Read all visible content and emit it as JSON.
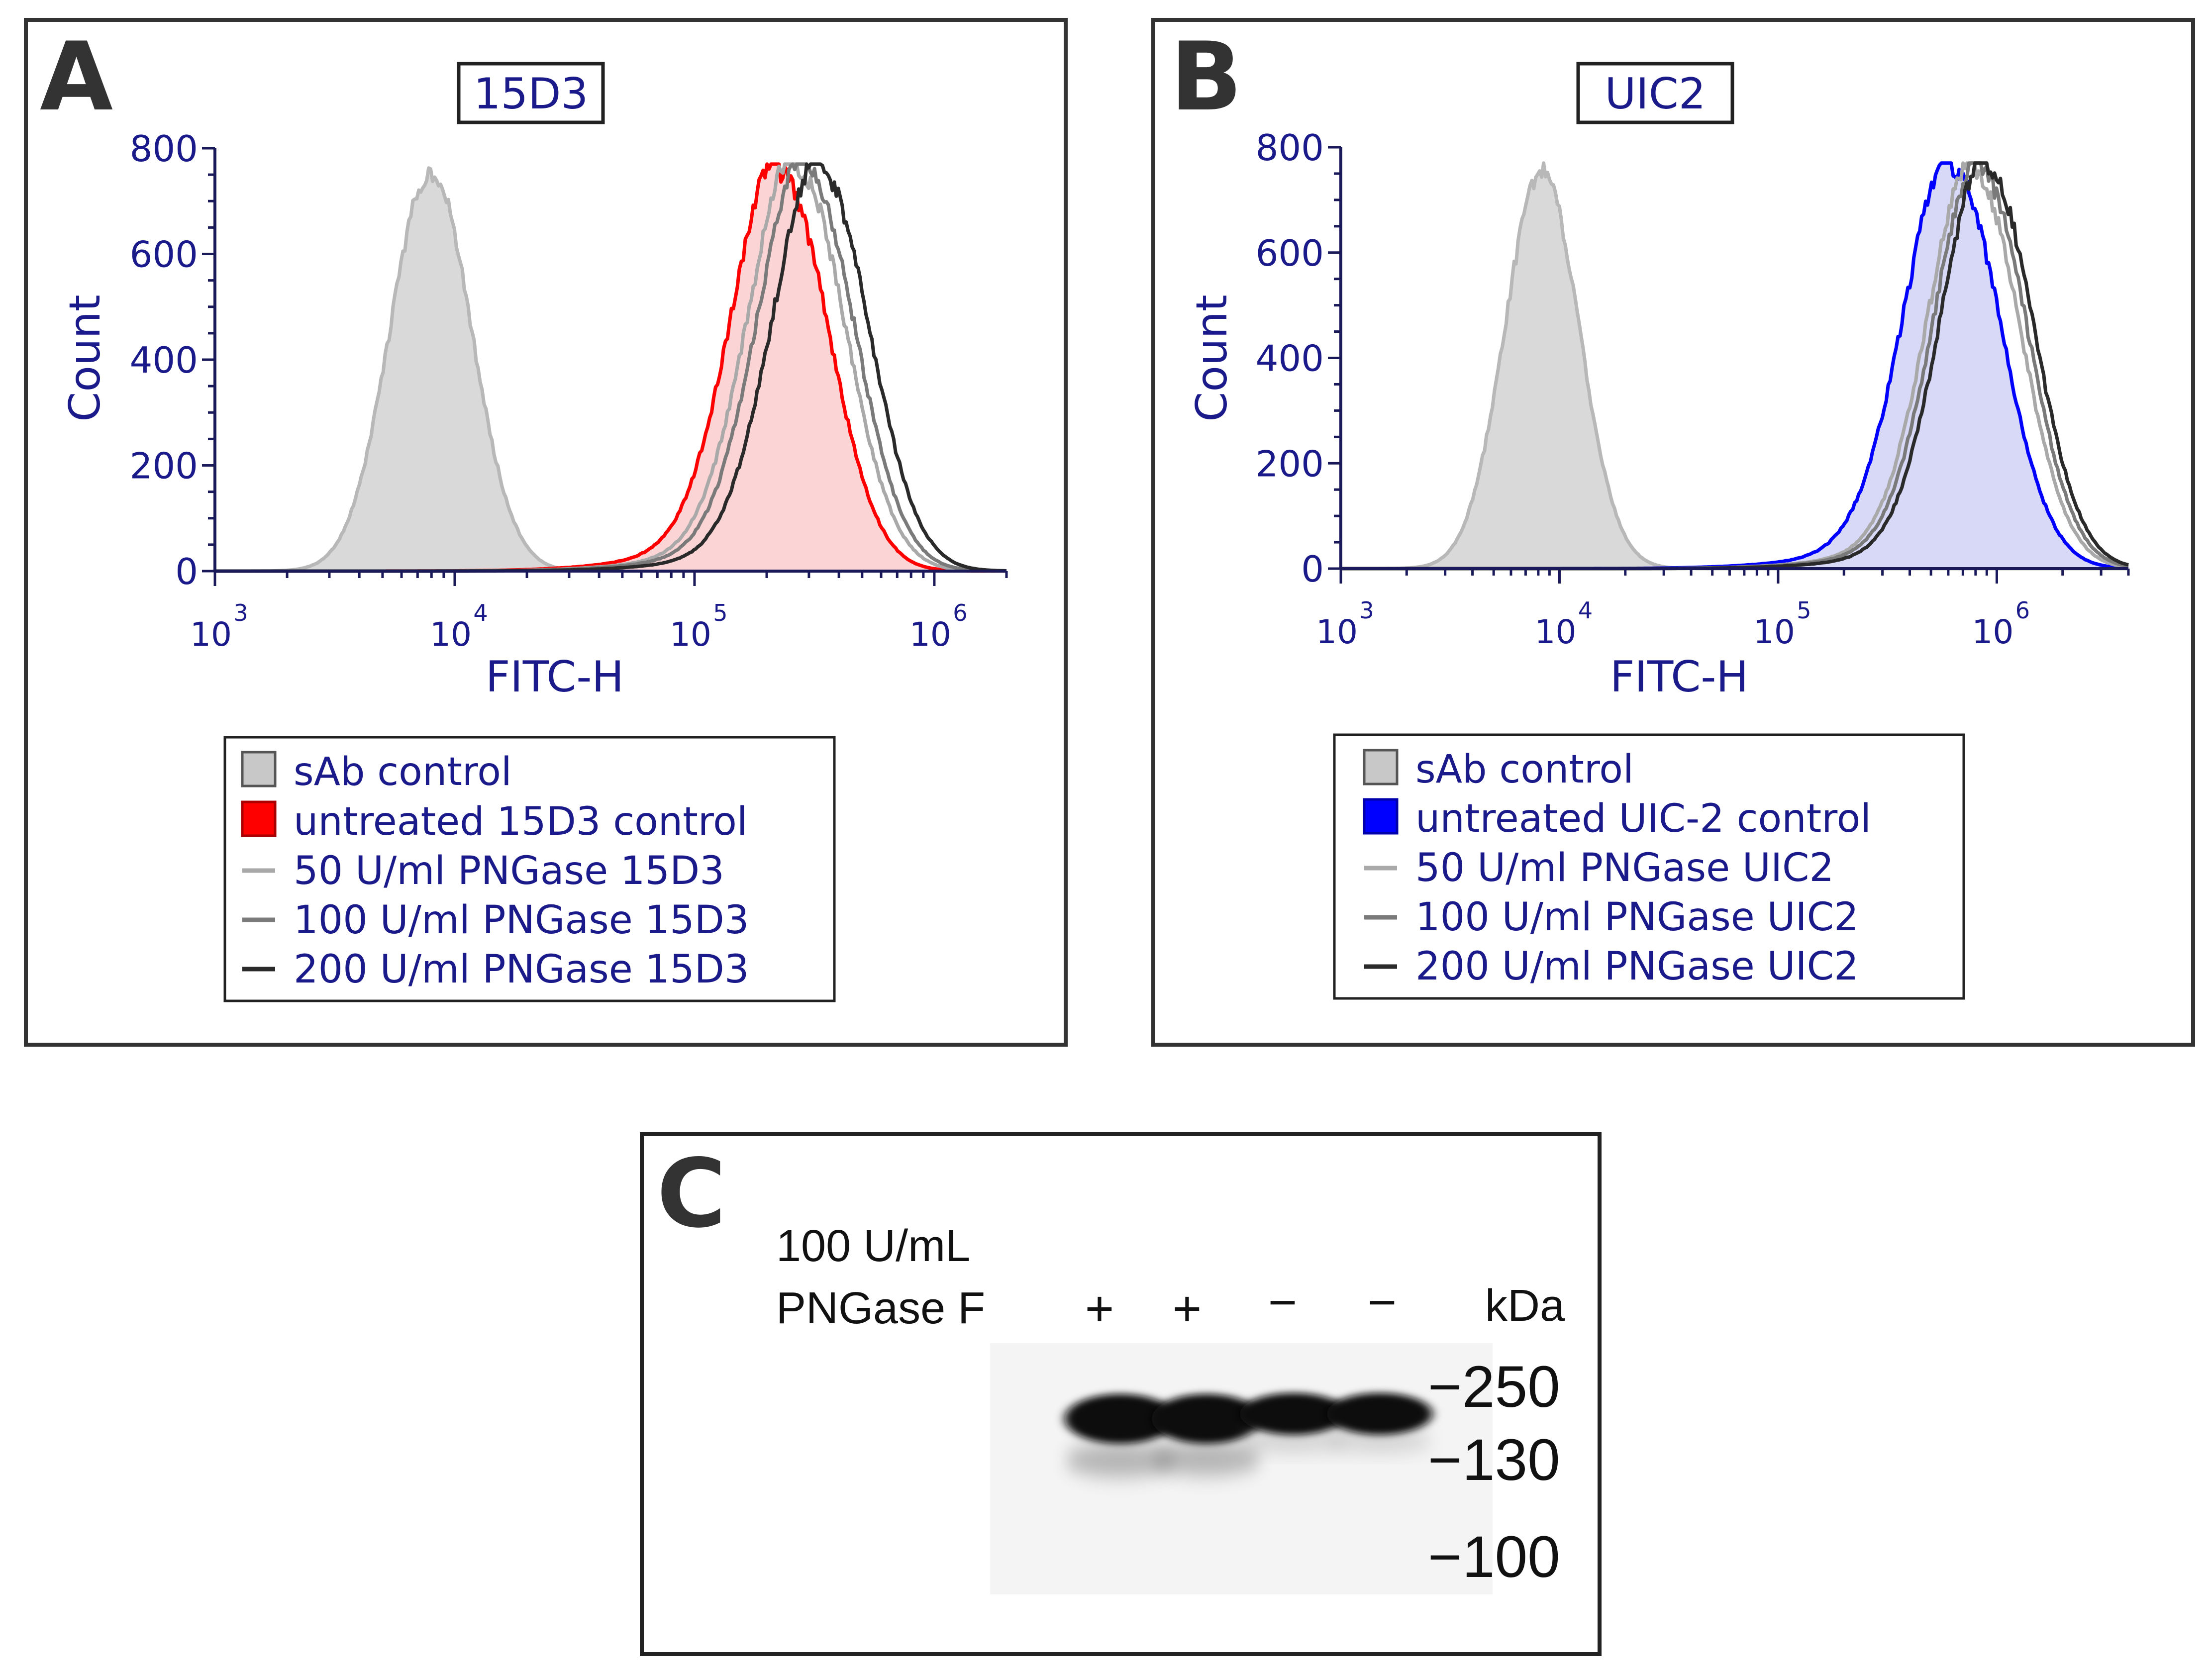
{
  "panels": [
    {
      "letter": "A",
      "antibody_label": "15D3",
      "chart_data": {
        "type": "histogram",
        "title": "15D3",
        "xlabel": "FITC-H",
        "ylabel": "Count",
        "xscale": "log",
        "xlim": [
          1000,
          2000000
        ],
        "ylim": [
          0,
          800
        ],
        "yticks": [
          0,
          200,
          400,
          600,
          800
        ],
        "xticks": [
          {
            "value": 1000,
            "base": "10",
            "exp": "3"
          },
          {
            "value": 10000,
            "base": "10",
            "exp": "4"
          },
          {
            "value": 100000,
            "base": "10",
            "exp": "5"
          },
          {
            "value": 1000000,
            "base": "10",
            "exp": "6"
          }
        ],
        "series": [
          {
            "name": "sAb control",
            "style": "filled",
            "color": "#b8b8b8",
            "fill": "#d9d9d9",
            "peak_log10": 3.9,
            "peak_count": 755,
            "sigma_log10": 0.17,
            "left_tail": 0
          },
          {
            "name": "untreated 15D3 control",
            "style": "filled",
            "color": "#ff0000",
            "fill": "#fbd5d5",
            "peak_log10": 5.36,
            "peak_count": 750,
            "sigma_log10": 0.2,
            "left_tail": 0.07
          },
          {
            "name": "50 U/ml PNGase 15D3",
            "style": "line",
            "color": "#a9a9a9",
            "peak_log10": 5.43,
            "peak_count": 760,
            "sigma_log10": 0.2,
            "left_tail": 0.06
          },
          {
            "name": "100 U/ml PNGase 15D3",
            "style": "line",
            "color": "#7a7a7a",
            "peak_log10": 5.47,
            "peak_count": 755,
            "sigma_log10": 0.2,
            "left_tail": 0.06
          },
          {
            "name": "200 U/ml PNGase 15D3",
            "style": "line",
            "color": "#2a2a2a",
            "peak_log10": 5.53,
            "peak_count": 755,
            "sigma_log10": 0.2,
            "left_tail": 0.05
          }
        ],
        "legend": "below"
      }
    },
    {
      "letter": "B",
      "antibody_label": "UIC2",
      "chart_data": {
        "type": "histogram",
        "title": "UIC2",
        "xlabel": "FITC-H",
        "ylabel": "Count",
        "xscale": "log",
        "xlim": [
          1000,
          4000000
        ],
        "ylim": [
          0,
          800
        ],
        "yticks": [
          0,
          200,
          400,
          600,
          800
        ],
        "xticks": [
          {
            "value": 1000,
            "base": "10",
            "exp": "3"
          },
          {
            "value": 10000,
            "base": "10",
            "exp": "4"
          },
          {
            "value": 100000,
            "base": "10",
            "exp": "5"
          },
          {
            "value": 1000000,
            "base": "10",
            "exp": "6"
          }
        ],
        "series": [
          {
            "name": "sAb control",
            "style": "filled",
            "color": "#b8b8b8",
            "fill": "#d9d9d9",
            "peak_log10": 3.92,
            "peak_count": 755,
            "sigma_log10": 0.17,
            "left_tail": 0
          },
          {
            "name": "untreated UIC-2 control",
            "style": "filled",
            "color": "#0000ff",
            "fill": "#d8d8f7",
            "peak_log10": 5.8,
            "peak_count": 755,
            "sigma_log10": 0.22,
            "left_tail": 0.06
          },
          {
            "name": "50 U/ml PNGase UIC2",
            "style": "line",
            "color": "#a9a9a9",
            "peak_log10": 5.9,
            "peak_count": 745,
            "sigma_log10": 0.21,
            "left_tail": 0.06
          },
          {
            "name": "100 U/ml PNGase UIC2",
            "style": "line",
            "color": "#7a7a7a",
            "peak_log10": 5.93,
            "peak_count": 750,
            "sigma_log10": 0.21,
            "left_tail": 0.06
          },
          {
            "name": "200 U/ml PNGase UIC2",
            "style": "line",
            "color": "#2a2a2a",
            "peak_log10": 5.96,
            "peak_count": 755,
            "sigma_log10": 0.21,
            "left_tail": 0.05
          }
        ],
        "legend": "below"
      }
    }
  ],
  "blot": {
    "letter": "C",
    "treatment_line1": "100 U/mL",
    "treatment_line2": "PNGase F",
    "lanes": [
      {
        "sign": "+",
        "treated": true
      },
      {
        "sign": "+",
        "treated": true
      },
      {
        "sign": "−",
        "treated": false
      },
      {
        "sign": "−",
        "treated": false
      }
    ],
    "unit_label": "kDa",
    "markers": [
      {
        "label": "−250",
        "kda": 250
      },
      {
        "label": "−130",
        "kda": 130
      },
      {
        "label": "−100",
        "kda": 100
      }
    ]
  }
}
